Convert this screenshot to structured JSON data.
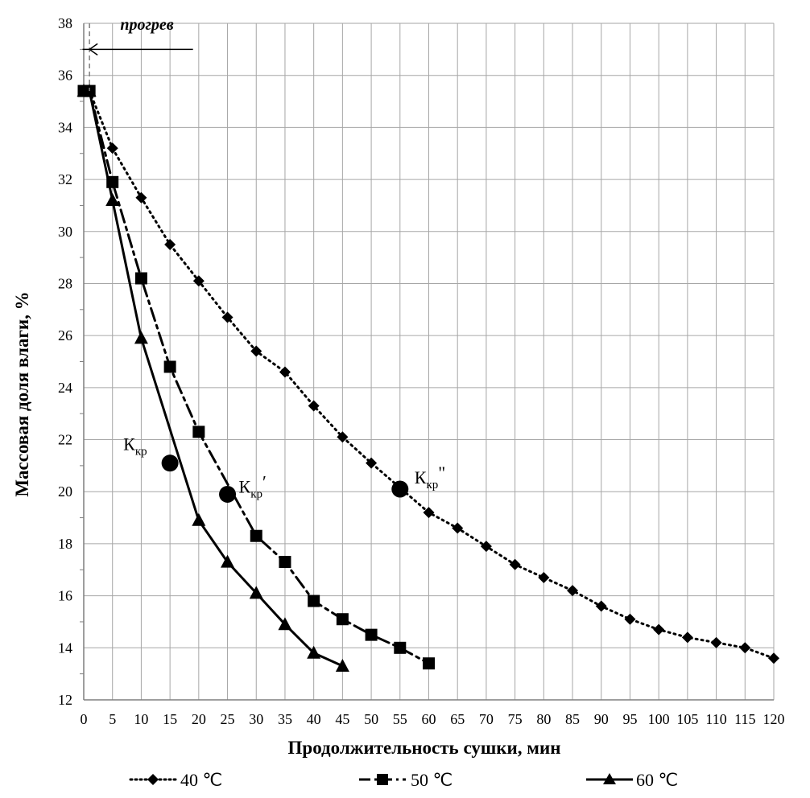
{
  "chart_data": {
    "type": "line",
    "title": "",
    "xlabel": "Продолжительность  сушки, мин",
    "ylabel": "Массовая доля влаги, %",
    "xlim": [
      0,
      120
    ],
    "ylim": [
      12,
      38
    ],
    "x_ticks": [
      0,
      5,
      10,
      15,
      20,
      25,
      30,
      35,
      40,
      45,
      50,
      55,
      60,
      65,
      70,
      75,
      80,
      85,
      90,
      95,
      100,
      105,
      110,
      115,
      120
    ],
    "y_ticks": [
      12,
      14,
      16,
      18,
      20,
      22,
      24,
      26,
      28,
      30,
      32,
      34,
      36,
      38
    ],
    "grid": true,
    "legend_position": "bottom",
    "series": [
      {
        "name": "40 ℃",
        "style": "dotted",
        "marker": "diamond",
        "x": [
          0,
          1,
          5,
          10,
          15,
          20,
          25,
          30,
          35,
          40,
          45,
          50,
          60,
          65,
          70,
          75,
          80,
          85,
          90,
          95,
          100,
          105,
          110,
          115,
          120
        ],
        "y": [
          35.4,
          35.4,
          33.2,
          31.3,
          29.5,
          28.1,
          26.7,
          25.4,
          24.6,
          23.3,
          22.1,
          21.1,
          19.2,
          18.6,
          17.9,
          17.2,
          16.7,
          16.2,
          15.6,
          15.1,
          14.7,
          14.4,
          14.2,
          14.0,
          13.6
        ]
      },
      {
        "name": "50 ℃",
        "style": "dash-dot",
        "marker": "square",
        "x": [
          0,
          1,
          5,
          10,
          15,
          20,
          30,
          35,
          40,
          45,
          50,
          55,
          60
        ],
        "y": [
          35.4,
          35.4,
          31.9,
          28.2,
          24.8,
          22.3,
          18.3,
          17.3,
          15.8,
          15.1,
          14.5,
          14.0,
          13.4
        ]
      },
      {
        "name": "60 ℃",
        "style": "solid",
        "marker": "triangle",
        "x": [
          0,
          1,
          5,
          10,
          20,
          25,
          30,
          35,
          40,
          45
        ],
        "y": [
          35.4,
          35.4,
          31.2,
          25.9,
          18.9,
          17.3,
          16.1,
          14.9,
          13.8,
          13.3
        ]
      }
    ],
    "critical_points": [
      {
        "label": "К",
        "sub": "кр",
        "sup": "",
        "x": 15,
        "y": 21.1
      },
      {
        "label": "К",
        "sub": "кр",
        "sup": "′",
        "x": 25,
        "y": 19.9
      },
      {
        "label": "К",
        "sub": "кр",
        "sup": "\"",
        "x": 55,
        "y": 20.1
      }
    ],
    "annotations": {
      "heating_label": "прогрев"
    }
  },
  "colors": {
    "line": "#000000",
    "grid": "#a6a6a6",
    "axis": "#7f7f7f"
  }
}
